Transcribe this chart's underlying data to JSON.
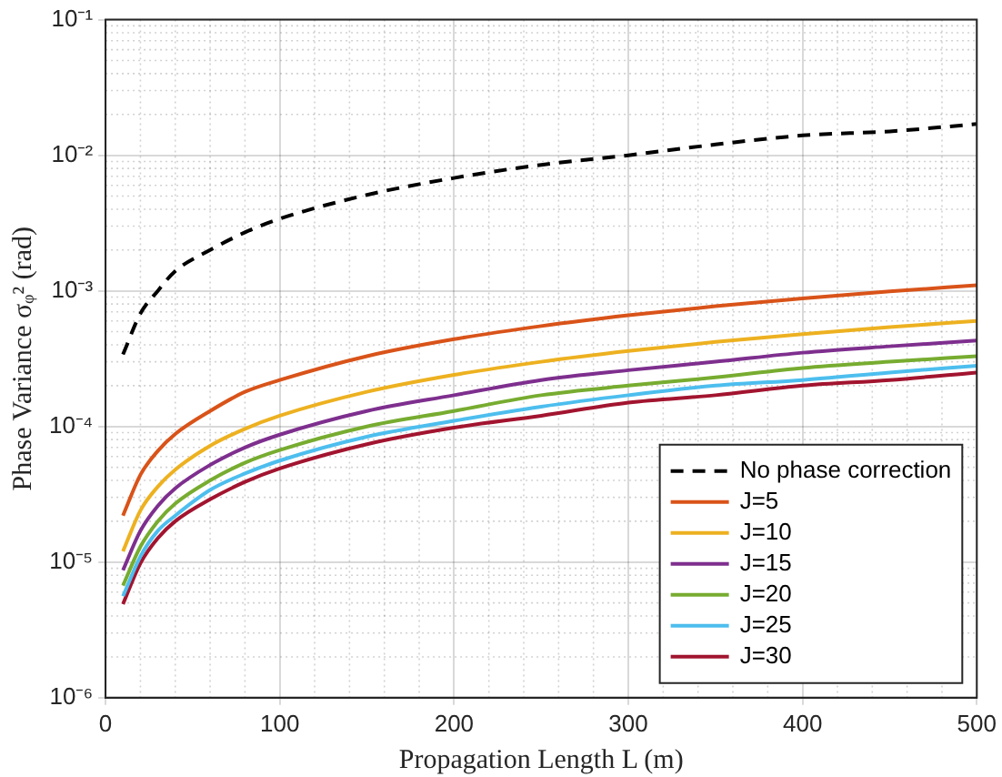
{
  "chart_data": {
    "type": "line",
    "xlabel": "Propagation Length L (m)",
    "ylabel": "Phase Variance σᵩ² (rad)",
    "x": [
      10,
      20,
      30,
      40,
      60,
      80,
      100,
      150,
      200,
      250,
      300,
      350,
      400,
      450,
      500
    ],
    "series": [
      {
        "name": "No phase correction",
        "color": "#000000",
        "line_style": "dashed",
        "values": [
          0.00034,
          0.00068,
          0.001,
          0.0014,
          0.002,
          0.0027,
          0.0034,
          0.0051,
          0.0068,
          0.0085,
          0.01,
          0.012,
          0.014,
          0.015,
          0.017
        ]
      },
      {
        "name": "J=5",
        "color": "#d95319",
        "values": [
          2.2e-05,
          4.4e-05,
          6.6e-05,
          8.8e-05,
          0.00013,
          0.00018,
          0.00022,
          0.00033,
          0.00044,
          0.00055,
          0.00066,
          0.00077,
          0.00088,
          0.00099,
          0.0011
        ]
      },
      {
        "name": "J=10",
        "color": "#edb120",
        "values": [
          1.2e-05,
          2.4e-05,
          3.6e-05,
          4.8e-05,
          7.2e-05,
          9.6e-05,
          0.00012,
          0.00018,
          0.00024,
          0.0003,
          0.00036,
          0.00042,
          0.00048,
          0.00054,
          0.0006
        ]
      },
      {
        "name": "J=15",
        "color": "#7e2f8e",
        "values": [
          8.7e-06,
          1.7e-05,
          2.6e-05,
          3.5e-05,
          5.2e-05,
          7e-05,
          8.7e-05,
          0.00013,
          0.00017,
          0.00022,
          0.00026,
          0.0003,
          0.00035,
          0.00039,
          0.00043
        ]
      },
      {
        "name": "J=20",
        "color": "#77ac30",
        "values": [
          6.7e-06,
          1.3e-05,
          2e-05,
          2.7e-05,
          4e-05,
          5.4e-05,
          6.7e-05,
          0.0001,
          0.00013,
          0.00017,
          0.0002,
          0.00023,
          0.00027,
          0.0003,
          0.00033
        ]
      },
      {
        "name": "J=25",
        "color": "#4dbeee",
        "values": [
          5.6e-06,
          1.1e-05,
          1.7e-05,
          2.2e-05,
          3.4e-05,
          4.5e-05,
          5.6e-05,
          8.4e-05,
          0.00011,
          0.00014,
          0.00017,
          0.0002,
          0.00022,
          0.00025,
          0.00028
        ]
      },
      {
        "name": "J=30",
        "color": "#a2142f",
        "values": [
          4.9e-06,
          9.8e-06,
          1.5e-05,
          2e-05,
          2.9e-05,
          3.9e-05,
          4.9e-05,
          7.4e-05,
          9.8e-05,
          0.00012,
          0.00015,
          0.00017,
          0.0002,
          0.00022,
          0.00025
        ]
      }
    ],
    "xlim": [
      0,
      500
    ],
    "xticks": [
      0,
      100,
      200,
      300,
      400,
      500
    ],
    "log": "y",
    "ylim": [
      1e-06,
      0.1
    ],
    "yticks": [
      {
        "value": 1e-06,
        "label": "10⁻⁶"
      },
      {
        "value": 1e-05,
        "label": "10⁻⁵"
      },
      {
        "value": 0.0001,
        "label": "10⁻⁴"
      },
      {
        "value": 0.001,
        "label": "10⁻³"
      },
      {
        "value": 0.01,
        "label": "10⁻²"
      },
      {
        "value": 0.1,
        "label": "10⁻¹"
      }
    ],
    "grid": true,
    "legend": "bottom right",
    "marker": "none",
    "line_style": "solid"
  }
}
